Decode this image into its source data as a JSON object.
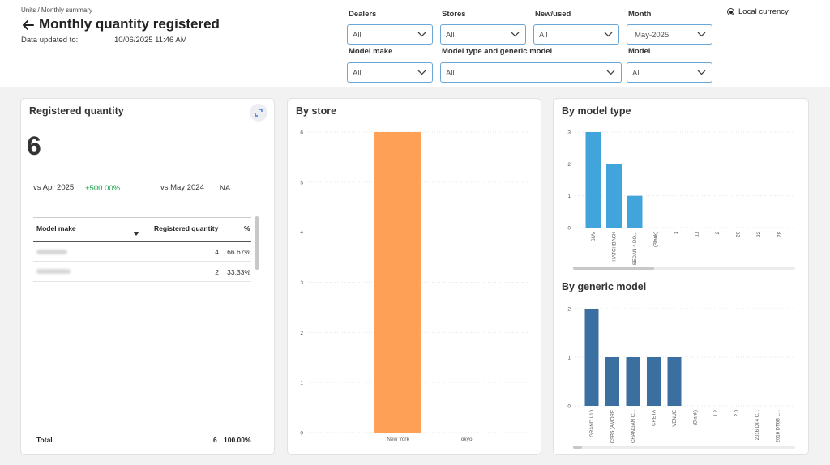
{
  "header": {
    "breadcrumb": "Units / Monthly summary",
    "title": "Monthly quantity registered",
    "updated_label": "Data updated to:",
    "updated_value": "10/06/2025 11:46 AM"
  },
  "filters": {
    "dealers": {
      "label": "Dealers",
      "value": "All"
    },
    "stores": {
      "label": "Stores",
      "value": "All"
    },
    "new_used": {
      "label": "New/used",
      "value": "All"
    },
    "month": {
      "label": "Month",
      "value": "May-2025"
    },
    "model_make": {
      "label": "Model make",
      "value": "All"
    },
    "model_type_generic": {
      "label": "Model type and generic model",
      "value": "All"
    },
    "model": {
      "label": "Model",
      "value": "All"
    }
  },
  "currency": {
    "label": "Local currency",
    "selected": true
  },
  "kpi": {
    "title": "Registered quantity",
    "value": "6",
    "vs_prev_label": "vs Apr 2025",
    "vs_prev_value": "+500.00%",
    "vs_year_label": "vs May 2024",
    "vs_year_value": "NA",
    "table": {
      "headers": {
        "make": "Model make",
        "qty": "Registered quantity",
        "pct": "%"
      },
      "rows": [
        {
          "qty": "4",
          "pct": "66.67%"
        },
        {
          "qty": "2",
          "pct": "33.33%"
        }
      ],
      "total": {
        "label": "Total",
        "qty": "6",
        "pct": "100.00%"
      }
    }
  },
  "colors": {
    "store_bar": "#ffa057",
    "type_bar": "#41a5dc",
    "generic_bar": "#3b6fa0"
  },
  "chart_data": [
    {
      "type": "bar",
      "title": "By store",
      "categories": [
        "New York",
        "Tokyo"
      ],
      "values": [
        6,
        0
      ],
      "yticks": [
        0,
        1,
        2,
        3,
        4,
        5,
        6
      ],
      "ylim": [
        0,
        6
      ],
      "grid": true
    },
    {
      "type": "bar",
      "title": "By model type",
      "categories": [
        "SUV",
        "HATCHBACK",
        "SEDAN 4 DO...",
        "(Blank)",
        "1",
        "11",
        "2",
        "20",
        "22",
        "28"
      ],
      "values": [
        3,
        2,
        1,
        0,
        0,
        0,
        0,
        0,
        0,
        0
      ],
      "yticks": [
        0,
        1,
        2,
        3
      ],
      "ylim": [
        0,
        3
      ],
      "grid": true
    },
    {
      "type": "bar",
      "title": "By generic model",
      "categories": [
        "GRAND I-10",
        "CSB5 (AMORE",
        "CHANGAN C...",
        "CRETA",
        "VENUE",
        "(Blank)",
        "1.2",
        "2.0",
        "2016 DT4 C...",
        "2016 DT6B L..."
      ],
      "values": [
        2,
        1,
        1,
        1,
        1,
        0,
        0,
        0,
        0,
        0
      ],
      "yticks": [
        0,
        1,
        2
      ],
      "ylim": [
        0,
        2
      ],
      "grid": true
    }
  ]
}
